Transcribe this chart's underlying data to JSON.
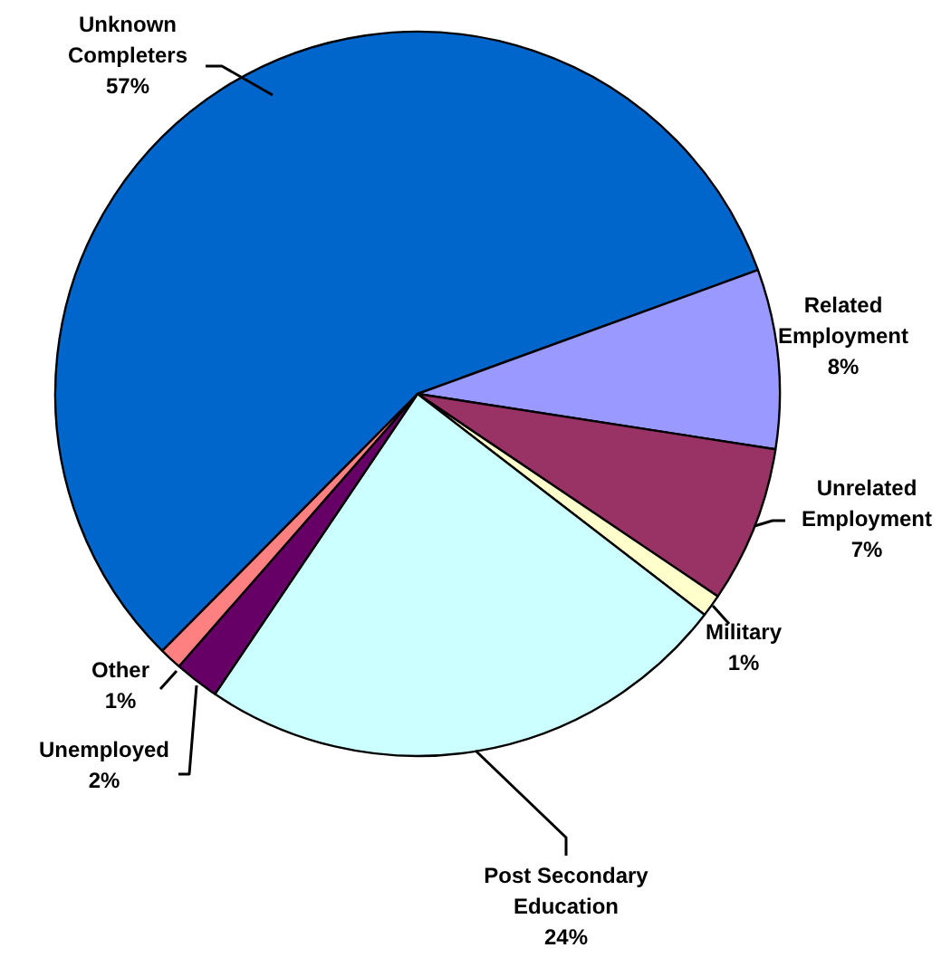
{
  "chart_data": {
    "type": "pie",
    "categories": [
      "Unknown Completers",
      "Related Employment",
      "Unrelated Employment",
      "Military",
      "Post Secondary Education",
      "Unemployed",
      "Other"
    ],
    "values": [
      57,
      8,
      7,
      1,
      24,
      2,
      1
    ],
    "colors": [
      "#0066cc",
      "#9999ff",
      "#993366",
      "#ffffcc",
      "#ccffff",
      "#660066",
      "#ff8080"
    ],
    "value_labels": [
      "57%",
      "8%",
      "7%",
      "1%",
      "24%",
      "2%",
      "1%"
    ]
  }
}
